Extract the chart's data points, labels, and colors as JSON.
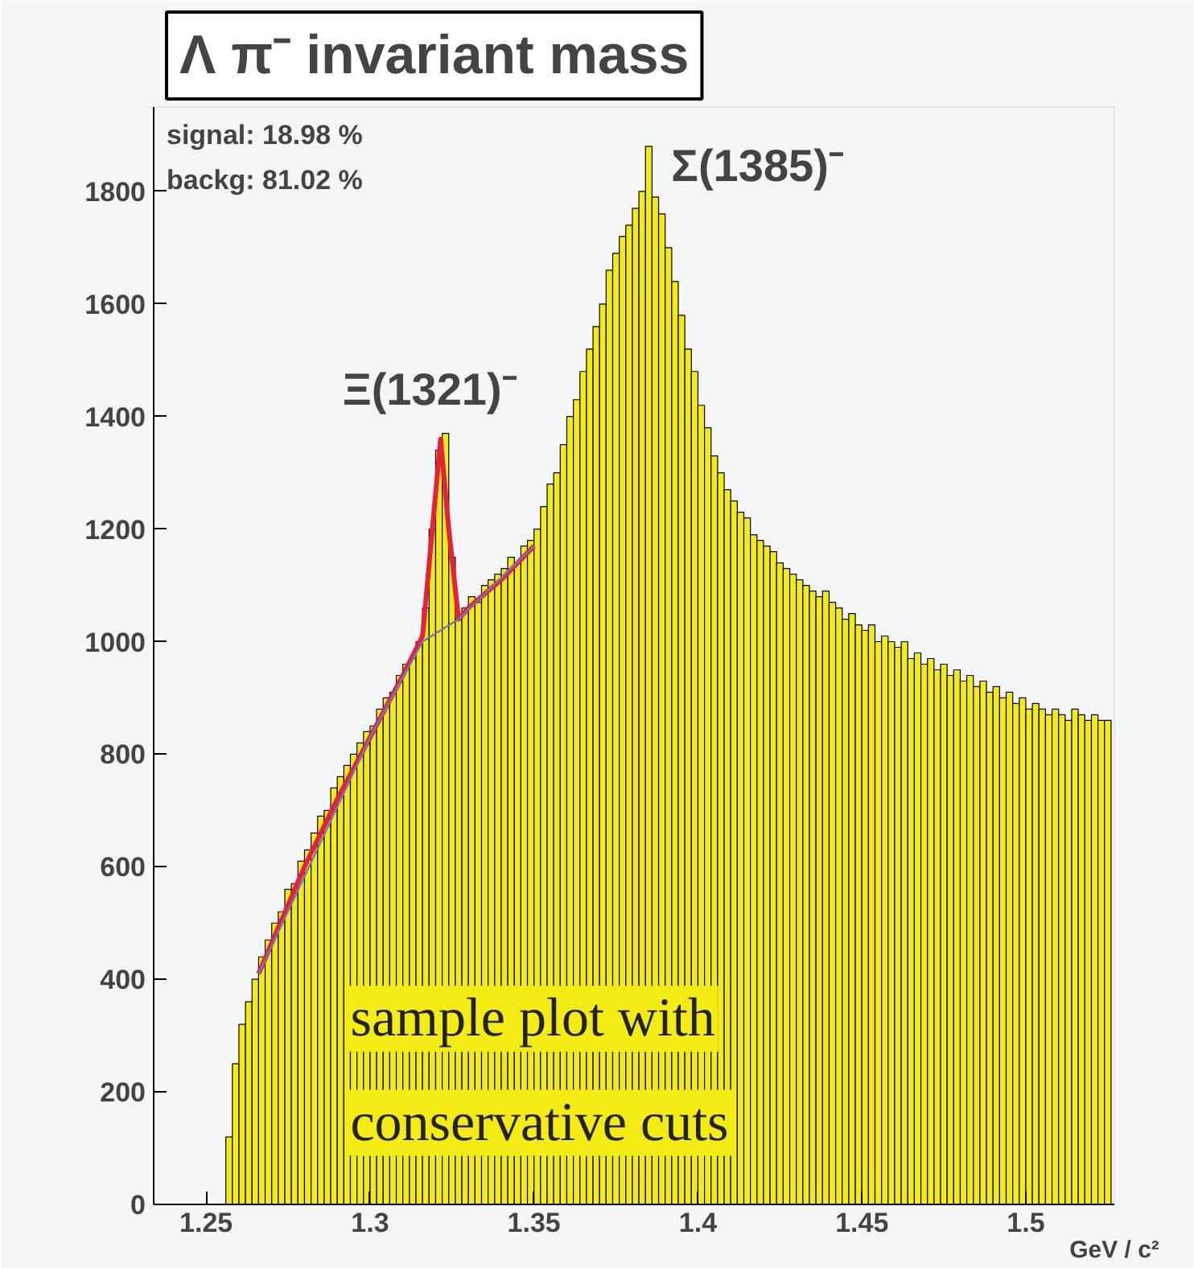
{
  "chart_data": {
    "type": "histogram",
    "title": "Λ π⁻ invariant mass",
    "xlabel": "GeV / c²",
    "bins": [
      1.256,
      1.258,
      1.26,
      1.262,
      1.264,
      1.266,
      1.268,
      1.27,
      1.272,
      1.274,
      1.276,
      1.278,
      1.28,
      1.282,
      1.284,
      1.286,
      1.288,
      1.29,
      1.292,
      1.294,
      1.296,
      1.298,
      1.3,
      1.302,
      1.304,
      1.306,
      1.308,
      1.31,
      1.312,
      1.314,
      1.316,
      1.318,
      1.32,
      1.322,
      1.324,
      1.326,
      1.328,
      1.33,
      1.332,
      1.334,
      1.336,
      1.338,
      1.34,
      1.342,
      1.344,
      1.346,
      1.348,
      1.35,
      1.352,
      1.354,
      1.356,
      1.358,
      1.36,
      1.362,
      1.364,
      1.366,
      1.368,
      1.37,
      1.372,
      1.374,
      1.376,
      1.378,
      1.38,
      1.382,
      1.384,
      1.386,
      1.388,
      1.39,
      1.392,
      1.394,
      1.396,
      1.398,
      1.4,
      1.402,
      1.404,
      1.406,
      1.408,
      1.41,
      1.412,
      1.414,
      1.416,
      1.418,
      1.42,
      1.422,
      1.424,
      1.426,
      1.428,
      1.43,
      1.432,
      1.434,
      1.436,
      1.438,
      1.44,
      1.442,
      1.444,
      1.446,
      1.448,
      1.45,
      1.452,
      1.454,
      1.456,
      1.458,
      1.46,
      1.462,
      1.464,
      1.466,
      1.468,
      1.47,
      1.472,
      1.474,
      1.476,
      1.478,
      1.48,
      1.482,
      1.484,
      1.486,
      1.488,
      1.49,
      1.492,
      1.494,
      1.496,
      1.498,
      1.5,
      1.502,
      1.504,
      1.506,
      1.508,
      1.51,
      1.512,
      1.514,
      1.516,
      1.518,
      1.52,
      1.522,
      1.524,
      1.526
    ],
    "values": [
      120,
      250,
      320,
      360,
      400,
      440,
      470,
      500,
      520,
      560,
      570,
      610,
      630,
      660,
      690,
      700,
      740,
      760,
      780,
      800,
      820,
      840,
      850,
      880,
      900,
      910,
      940,
      960,
      970,
      1000,
      1060,
      1200,
      1340,
      1370,
      1150,
      1040,
      1060,
      1080,
      1070,
      1100,
      1110,
      1120,
      1130,
      1150,
      1140,
      1170,
      1180,
      1200,
      1240,
      1280,
      1300,
      1350,
      1400,
      1430,
      1480,
      1520,
      1560,
      1600,
      1660,
      1690,
      1720,
      1740,
      1770,
      1800,
      1880,
      1790,
      1760,
      1700,
      1640,
      1580,
      1520,
      1480,
      1420,
      1380,
      1330,
      1300,
      1270,
      1250,
      1230,
      1220,
      1190,
      1180,
      1170,
      1160,
      1140,
      1130,
      1120,
      1110,
      1100,
      1090,
      1080,
      1090,
      1070,
      1060,
      1040,
      1050,
      1030,
      1020,
      1030,
      1000,
      1010,
      1000,
      990,
      1000,
      970,
      980,
      960,
      970,
      950,
      960,
      940,
      950,
      930,
      940,
      920,
      930,
      910,
      920,
      900,
      910,
      890,
      900,
      880,
      890,
      880,
      870,
      880,
      870,
      860,
      880,
      870,
      860,
      870,
      860,
      860
    ],
    "color": "#f5eb14",
    "series": [
      {
        "type": "line",
        "color": "#e8203a",
        "x": [
          1.266,
          1.28,
          1.29,
          1.3,
          1.31,
          1.316,
          1.319,
          1.3215,
          1.324,
          1.327,
          1.33,
          1.34,
          1.35
        ],
        "values": [
          410,
          600,
          720,
          830,
          940,
          1010,
          1200,
          1360,
          1200,
          1040,
          1060,
          1110,
          1170
        ]
      },
      {
        "type": "line",
        "color": "#6a78c8",
        "x": [
          1.266,
          1.3,
          1.316,
          1.327,
          1.35
        ],
        "values": [
          410,
          830,
          1000,
          1040,
          1170
        ]
      }
    ],
    "xlim": [
      1.234,
      1.527
    ],
    "ylim": [
      0,
      1950
    ],
    "xticks": [
      1.25,
      1.3,
      1.35,
      1.4,
      1.45,
      1.5
    ],
    "yticks": [
      0,
      200,
      400,
      600,
      800,
      1000,
      1200,
      1400,
      1600,
      1800
    ],
    "grid": false,
    "annotations": [
      "signal: 18.98 %",
      "backg: 81.02 %",
      {
        "text": "Ξ(1321)⁻",
        "x": 1.322,
        "y": 1370
      },
      {
        "text": "Σ(1385)⁻",
        "x": 1.385,
        "y": 1880
      },
      "sample plot with",
      "conservative cuts"
    ]
  }
}
